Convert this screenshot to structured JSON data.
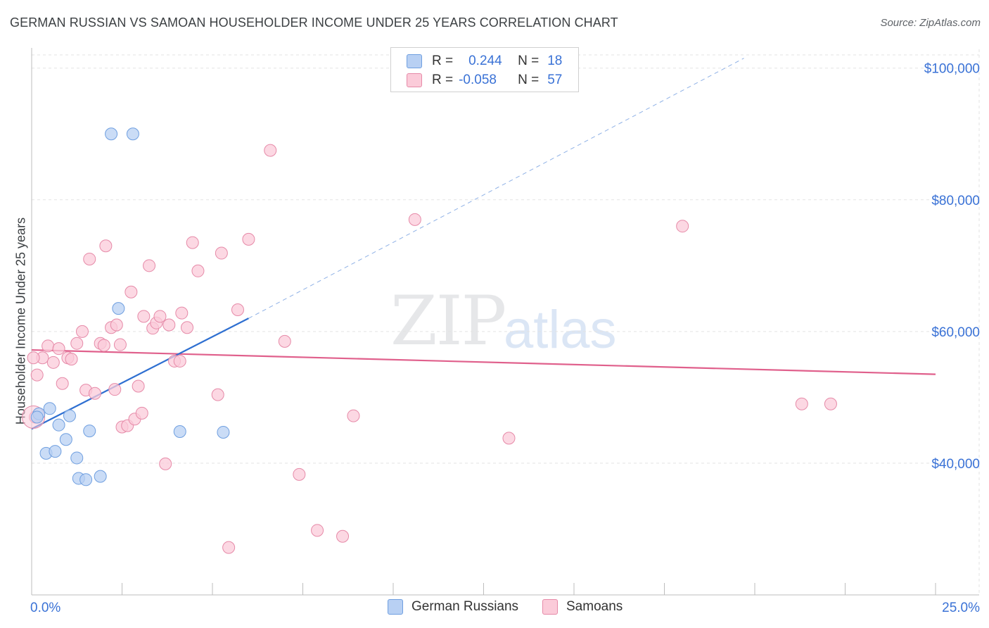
{
  "title": "GERMAN RUSSIAN VS SAMOAN HOUSEHOLDER INCOME UNDER 25 YEARS CORRELATION CHART",
  "source": "Source: ZipAtlas.com",
  "watermark": {
    "zip": "ZIP",
    "atlas": "atlas"
  },
  "legend": {
    "r_label": "R =",
    "n_label": "N =",
    "rows": [
      {
        "name": "German Russians",
        "r": "0.244",
        "n": "18"
      },
      {
        "name": "Samoans",
        "r": "-0.058",
        "n": "57"
      }
    ]
  },
  "colors": {
    "blue_fill": "#b8d0f3",
    "blue_stroke": "#6f9fe0",
    "blue_line": "#2e6fd1",
    "pink_fill": "#fbcbd9",
    "pink_stroke": "#e68aa8",
    "pink_line": "#e0608c",
    "tick_text": "#3a72d6"
  },
  "chart_data": {
    "type": "scatter",
    "title": "GERMAN RUSSIAN VS SAMOAN HOUSEHOLDER INCOME UNDER 25 YEARS CORRELATION CHART",
    "xlabel": "",
    "ylabel": "Householder Income Under 25 years",
    "xlim": [
      0,
      25
    ],
    "ylim": [
      20000,
      102000
    ],
    "x_tick_labels": [
      "0.0%",
      "25.0%"
    ],
    "y_ticks": [
      40000,
      60000,
      80000,
      100000
    ],
    "y_tick_labels": [
      "$40,000",
      "$60,000",
      "$80,000",
      "$100,000"
    ],
    "grid": true,
    "series": [
      {
        "name": "German Russians",
        "color": "blue",
        "points": [
          [
            0.2,
            47500
          ],
          [
            0.5,
            48300
          ],
          [
            0.75,
            45800
          ],
          [
            0.4,
            41500
          ],
          [
            0.65,
            41800
          ],
          [
            0.95,
            43600
          ],
          [
            1.05,
            47200
          ],
          [
            1.25,
            40800
          ],
          [
            1.3,
            37700
          ],
          [
            1.5,
            37500
          ],
          [
            1.6,
            44900
          ],
          [
            1.9,
            38000
          ],
          [
            2.2,
            90000
          ],
          [
            2.8,
            90000
          ],
          [
            2.4,
            63500
          ],
          [
            4.1,
            44800
          ],
          [
            5.3,
            44700
          ],
          [
            0.15,
            47000
          ]
        ],
        "trend": {
          "x": [
            0,
            6.0
          ],
          "y": [
            45200,
            62000
          ],
          "extended_to": [
            19.7,
            101500
          ]
        }
      },
      {
        "name": "Samoans",
        "color": "pink",
        "points": [
          [
            0.15,
            53400
          ],
          [
            0.3,
            56000
          ],
          [
            0.45,
            57800
          ],
          [
            0.6,
            55300
          ],
          [
            0.75,
            57400
          ],
          [
            0.85,
            52100
          ],
          [
            1.0,
            56000
          ],
          [
            1.1,
            55800
          ],
          [
            1.25,
            58200
          ],
          [
            1.4,
            60000
          ],
          [
            1.5,
            51100
          ],
          [
            1.6,
            71000
          ],
          [
            1.75,
            50600
          ],
          [
            1.9,
            58200
          ],
          [
            2.0,
            57900
          ],
          [
            2.05,
            73000
          ],
          [
            2.2,
            60600
          ],
          [
            2.3,
            51200
          ],
          [
            2.35,
            61000
          ],
          [
            2.5,
            45500
          ],
          [
            2.65,
            45700
          ],
          [
            2.75,
            66000
          ],
          [
            2.85,
            46700
          ],
          [
            2.95,
            51700
          ],
          [
            3.05,
            47600
          ],
          [
            3.1,
            62300
          ],
          [
            3.25,
            70000
          ],
          [
            3.35,
            60500
          ],
          [
            3.45,
            61300
          ],
          [
            3.55,
            62300
          ],
          [
            3.7,
            39900
          ],
          [
            3.8,
            61000
          ],
          [
            3.95,
            55500
          ],
          [
            4.1,
            55500
          ],
          [
            4.15,
            62800
          ],
          [
            4.3,
            60600
          ],
          [
            4.45,
            73500
          ],
          [
            4.6,
            69200
          ],
          [
            5.25,
            71900
          ],
          [
            5.15,
            50400
          ],
          [
            5.45,
            27200
          ],
          [
            5.7,
            63300
          ],
          [
            6.0,
            74000
          ],
          [
            6.6,
            87500
          ],
          [
            7.0,
            58500
          ],
          [
            7.4,
            38300
          ],
          [
            7.9,
            29800
          ],
          [
            8.6,
            28900
          ],
          [
            8.9,
            47200
          ],
          [
            10.6,
            77000
          ],
          [
            13.2,
            43800
          ],
          [
            18.0,
            76000
          ],
          [
            21.3,
            49000
          ],
          [
            22.1,
            49000
          ],
          [
            0.05,
            56000
          ],
          [
            0.1,
            47000
          ],
          [
            2.45,
            58000
          ]
        ],
        "trend": {
          "x": [
            0,
            25
          ],
          "y": [
            57200,
            53500
          ]
        }
      }
    ]
  }
}
